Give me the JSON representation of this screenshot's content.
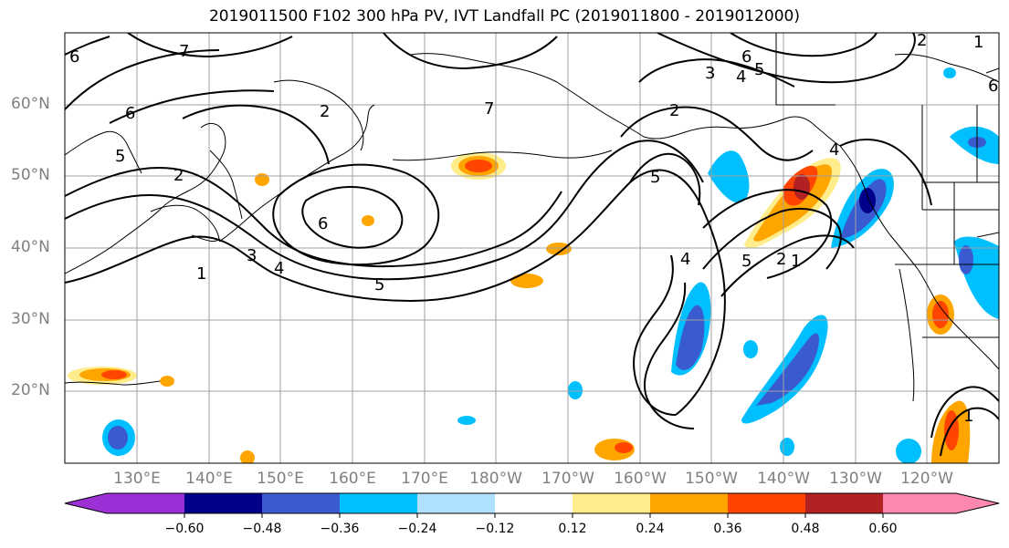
{
  "title": "2019011500 F102 300 hPa PV, IVT Landfall PC (2019011800 - 2019012000)",
  "lat_labels": [
    "60°N",
    "50°N",
    "40°N",
    "30°N",
    "20°N"
  ],
  "lon_labels": [
    "130°E",
    "140°E",
    "150°E",
    "160°E",
    "170°E",
    "180°W",
    "170°W",
    "160°W",
    "150°W",
    "140°W",
    "130°W",
    "120°W"
  ],
  "colorbar": {
    "ticks": [
      "−0.60",
      "−0.48",
      "−0.36",
      "−0.24",
      "−0.12",
      "0.12",
      "0.24",
      "0.36",
      "0.48",
      "0.60"
    ],
    "colors": [
      "#9b30d6",
      "#00008b",
      "#3a5bd0",
      "#00bfff",
      "#b0e2ff",
      "#ffffff",
      "#ffec8b",
      "#ffa500",
      "#ff4500",
      "#b22222",
      "#ff88b0"
    ]
  },
  "contour_labels": [
    "1",
    "2",
    "3",
    "4",
    "5",
    "6",
    "7"
  ]
}
